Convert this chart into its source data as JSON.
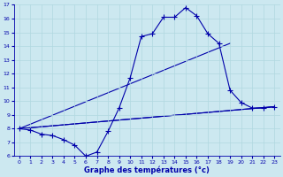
{
  "xlabel": "Graphe des températures (°c)",
  "xlim": [
    -0.5,
    23.5
  ],
  "ylim": [
    6,
    17
  ],
  "yticks": [
    6,
    7,
    8,
    9,
    10,
    11,
    12,
    13,
    14,
    15,
    16,
    17
  ],
  "xticks": [
    0,
    1,
    2,
    3,
    4,
    5,
    6,
    7,
    8,
    9,
    10,
    11,
    12,
    13,
    14,
    15,
    16,
    17,
    18,
    19,
    20,
    21,
    22,
    23
  ],
  "bg_color": "#cce8f0",
  "line_color": "#0000aa",
  "grid_color": "#b0d8e0",
  "main_series": {
    "x": [
      0,
      1,
      2,
      3,
      4,
      5,
      6,
      7,
      8,
      9,
      10,
      11,
      12,
      13,
      14,
      15,
      16,
      17,
      18,
      19,
      20,
      21,
      22,
      23
    ],
    "y": [
      8.0,
      7.9,
      7.6,
      7.5,
      7.2,
      6.8,
      6.0,
      6.3,
      7.8,
      9.5,
      11.7,
      14.7,
      14.9,
      16.1,
      16.1,
      16.8,
      16.2,
      14.9,
      14.2,
      10.8,
      9.9,
      9.5,
      9.5,
      9.6
    ]
  },
  "trend1": {
    "x": [
      0,
      23
    ],
    "y": [
      8.0,
      9.6
    ]
  },
  "trend2": {
    "x": [
      0,
      19
    ],
    "y": [
      8.0,
      14.2
    ]
  },
  "trend3": {
    "x": [
      0,
      23
    ],
    "y": [
      8.0,
      9.6
    ]
  }
}
